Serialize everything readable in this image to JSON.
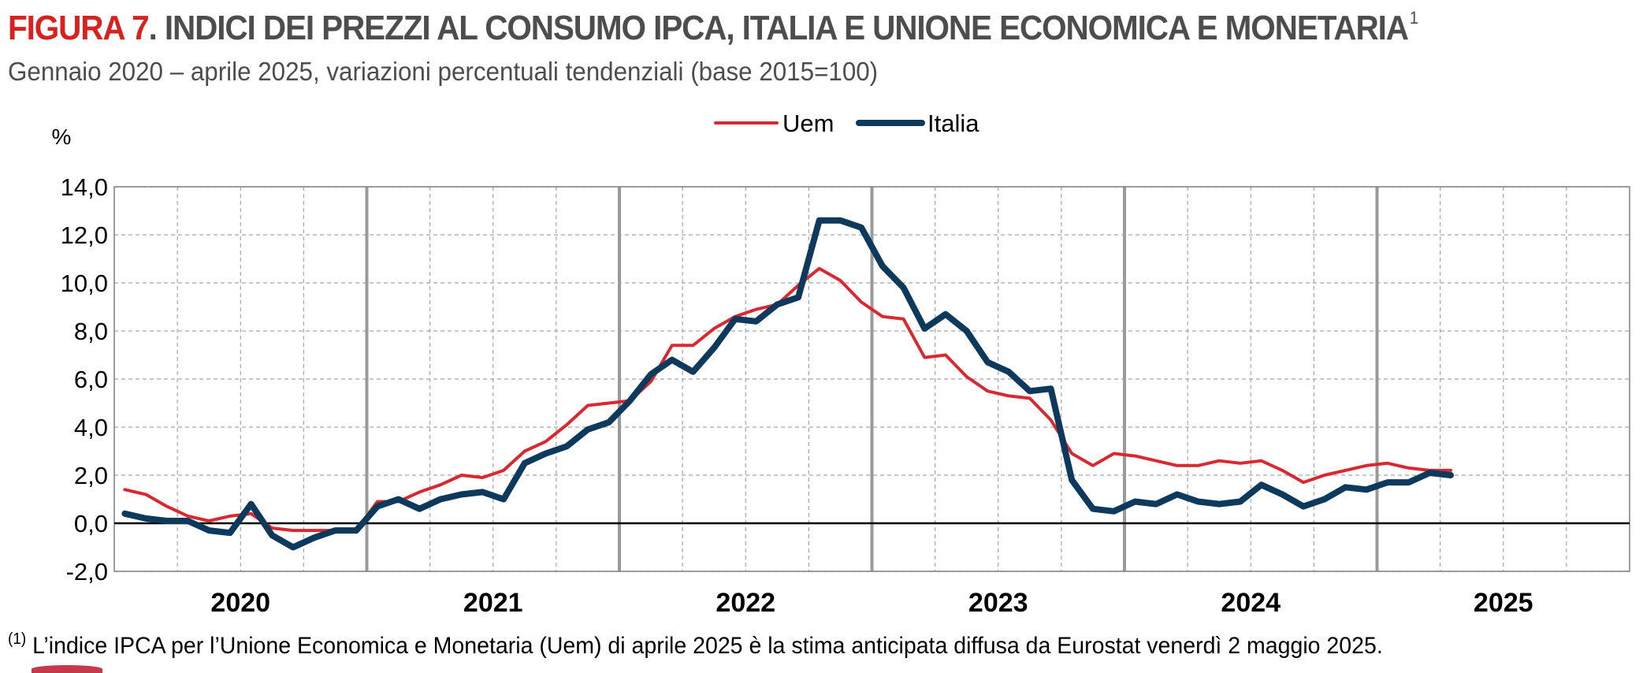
{
  "header": {
    "label": "FIGURA 7",
    "title": ". INDICI DEI PREZZI AL CONSUMO IPCA, ITALIA E UNIONE ECONOMICA E MONETARIA",
    "title_sup": "1",
    "subtitle": "Gennaio 2020 – aprile 2025, variazioni percentuali tendenziali (base 2015=100)"
  },
  "footnote": {
    "marker": "(1)",
    "text": " L’indice IPCA per l’Unione Economica e Monetaria (Uem) di aprile 2025 è la stima anticipata diffusa da Eurostat venerdì 2 maggio 2025."
  },
  "colors": {
    "uem": "#d9282f",
    "italia": "#0d3a5c",
    "title_label": "#d9211e",
    "grid": "#a6a6a6"
  },
  "chart_data": {
    "type": "line",
    "ylabel": "%",
    "ylim": [
      -2,
      14
    ],
    "yticks": [
      -2,
      0,
      2,
      4,
      6,
      8,
      10,
      12,
      14
    ],
    "ytick_labels": [
      "-2,0",
      "0,0",
      "2,0",
      "4,0",
      "6,0",
      "8,0",
      "10,0",
      "12,0",
      "14,0"
    ],
    "x_year_labels": [
      "2020",
      "2021",
      "2022",
      "2023",
      "2024",
      "2025"
    ],
    "x_start": "2020-01",
    "x_end": "2025-12",
    "legend_position": "top-center",
    "grid": true,
    "series": [
      {
        "name": "Uem",
        "values": [
          1.4,
          1.2,
          0.7,
          0.3,
          0.1,
          0.3,
          0.4,
          -0.2,
          -0.3,
          -0.3,
          -0.3,
          -0.3,
          0.9,
          0.9,
          1.3,
          1.6,
          2.0,
          1.9,
          2.2,
          3.0,
          3.4,
          4.1,
          4.9,
          5.0,
          5.1,
          5.9,
          7.4,
          7.4,
          8.1,
          8.6,
          8.9,
          9.1,
          9.9,
          10.6,
          10.1,
          9.2,
          8.6,
          8.5,
          6.9,
          7.0,
          6.1,
          5.5,
          5.3,
          5.2,
          4.3,
          2.9,
          2.4,
          2.9,
          2.8,
          2.6,
          2.4,
          2.4,
          2.6,
          2.5,
          2.6,
          2.2,
          1.7,
          2.0,
          2.2,
          2.4,
          2.5,
          2.3,
          2.2,
          2.2
        ]
      },
      {
        "name": "Italia",
        "values": [
          0.4,
          0.2,
          0.1,
          0.1,
          -0.3,
          -0.4,
          0.8,
          -0.5,
          -1.0,
          -0.6,
          -0.3,
          -0.3,
          0.7,
          1.0,
          0.6,
          1.0,
          1.2,
          1.3,
          1.0,
          2.5,
          2.9,
          3.2,
          3.9,
          4.2,
          5.1,
          6.2,
          6.8,
          6.3,
          7.3,
          8.5,
          8.4,
          9.1,
          9.4,
          12.6,
          12.6,
          12.3,
          10.7,
          9.8,
          8.1,
          8.7,
          8.0,
          6.7,
          6.3,
          5.5,
          5.6,
          1.8,
          0.6,
          0.5,
          0.9,
          0.8,
          1.2,
          0.9,
          0.8,
          0.9,
          1.6,
          1.2,
          0.7,
          1.0,
          1.5,
          1.4,
          1.7,
          1.7,
          2.1,
          2.0
        ]
      }
    ]
  }
}
